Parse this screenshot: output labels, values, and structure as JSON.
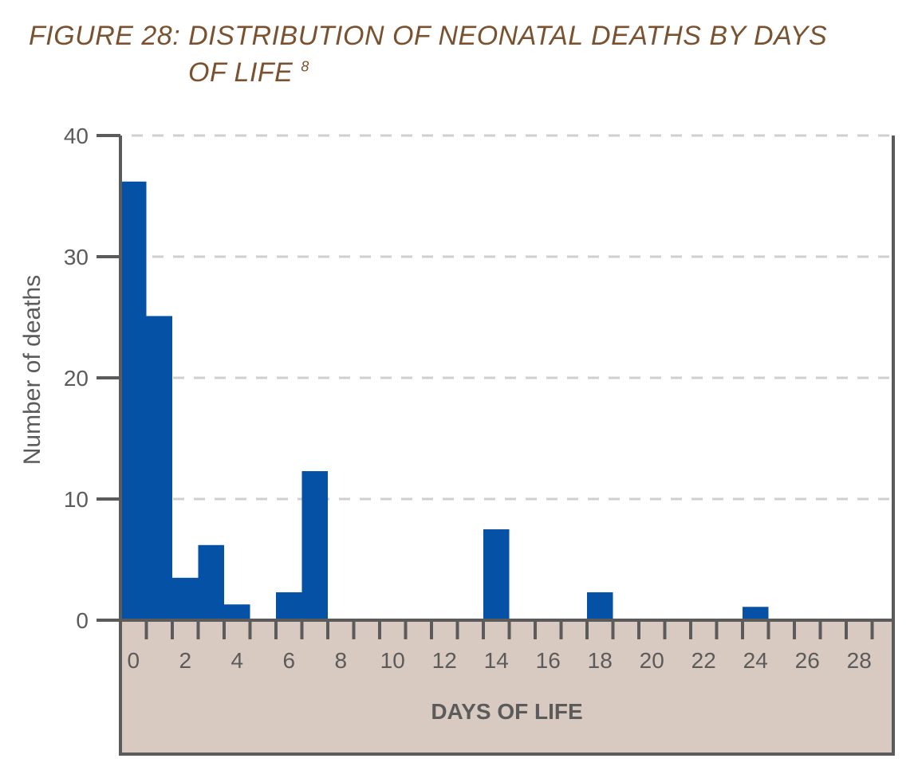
{
  "title": {
    "line1": "FIGURE 28: DISTRIBUTION OF NEONATAL DEATHS BY DAYS",
    "line2": "OF LIFE",
    "ref": "8"
  },
  "colors": {
    "bar": "#0451a5",
    "axis": "#5b5b5b",
    "grid": "#cfcfcf",
    "xband": "#d9cac1",
    "title": "#7a5230"
  },
  "chart_data": {
    "type": "bar",
    "xlabel": "DAYS OF LIFE",
    "ylabel": "Number of deaths",
    "ylim": [
      0,
      40
    ],
    "yticks": [
      0,
      10,
      20,
      30,
      40
    ],
    "xlim": [
      0,
      30
    ],
    "xticks": [
      0,
      2,
      4,
      6,
      8,
      10,
      12,
      14,
      16,
      18,
      20,
      22,
      24,
      26,
      28
    ],
    "grid": "horizontal dashed",
    "categories": [
      "0",
      "1",
      "2",
      "3",
      "4",
      "5",
      "6",
      "7",
      "8",
      "9",
      "10",
      "11",
      "12",
      "13",
      "14",
      "15",
      "16",
      "17",
      "18",
      "19",
      "20",
      "21",
      "22",
      "23",
      "24",
      "25",
      "26",
      "27",
      "28",
      "29"
    ],
    "values": [
      36.2,
      25.1,
      3.5,
      6.2,
      1.3,
      0,
      2.3,
      12.3,
      0,
      0,
      0,
      0,
      0,
      0,
      7.5,
      0,
      0,
      0,
      2.3,
      0,
      0,
      0,
      0,
      0,
      1.1,
      0,
      0,
      0,
      0,
      0
    ]
  }
}
